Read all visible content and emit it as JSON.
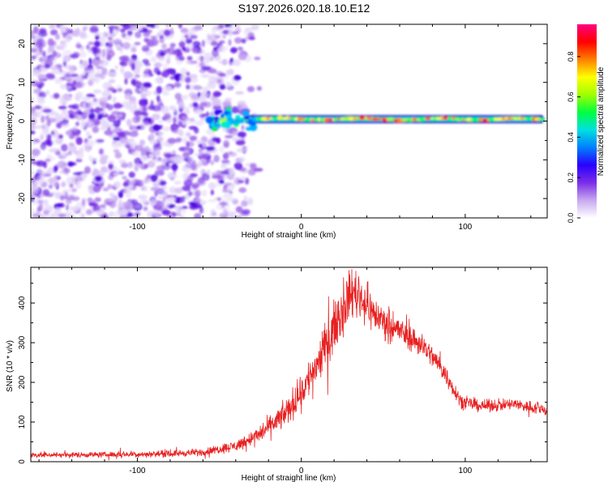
{
  "title": "S197.2026.020.18.10.E12",
  "chart_data": [
    {
      "type": "heatmap",
      "xlabel": "Height of straight line (km)",
      "ylabel": "Frequency (Hz)",
      "xlim": [
        -165,
        150
      ],
      "ylim": [
        -25,
        25
      ],
      "xticks": [
        -100,
        0,
        100
      ],
      "yticks": [
        -20,
        -10,
        0,
        10,
        20
      ],
      "x_tick_labels": [
        "-100",
        "0",
        "100"
      ],
      "y_tick_labels": [
        "-20",
        "-10",
        "0",
        "10",
        "20"
      ],
      "colorbar": {
        "label": "Normalized spectral amplitude",
        "range": [
          0.0,
          0.96
        ],
        "ticks": [
          "0.0",
          "0.2",
          "0.4",
          "0.6",
          "0.8"
        ],
        "colors": [
          "#ffffff",
          "#c8a8f0",
          "#7a2ee6",
          "#2a00ff",
          "#0080ff",
          "#00e0e0",
          "#00ff40",
          "#a0ff00",
          "#ffff00",
          "#ff8000",
          "#ff0000",
          "#ff0080"
        ]
      },
      "features": {
        "noise_region_x": [
          -165,
          -25
        ],
        "tone_region_x": [
          -55,
          148
        ],
        "tone_frequency_hz": 0.5
      }
    },
    {
      "type": "line",
      "xlabel": "Height of straight line (km)",
      "ylabel": "SNR (10 * v/v)",
      "xlim": [
        -165,
        150
      ],
      "ylim": [
        0,
        490
      ],
      "xticks": [
        -100,
        0,
        100
      ],
      "yticks": [
        0,
        100,
        200,
        300,
        400
      ],
      "x_tick_labels": [
        "-100",
        "0",
        "100"
      ],
      "y_tick_labels": [
        "0",
        "100",
        "200",
        "300",
        "400"
      ],
      "series": [
        {
          "name": "SNR",
          "color": "#e82020",
          "envelope_x": [
            -165,
            -120,
            -80,
            -60,
            -40,
            -25,
            -10,
            0,
            10,
            20,
            28,
            32,
            36,
            45,
            60,
            75,
            85,
            92,
            98,
            110,
            130,
            150
          ],
          "envelope_y": [
            17,
            18,
            20,
            24,
            40,
            70,
            120,
            175,
            250,
            340,
            410,
            430,
            415,
            370,
            330,
            290,
            240,
            190,
            150,
            140,
            145,
            130
          ],
          "noise_amplitude": [
            6,
            6,
            7,
            8,
            12,
            18,
            28,
            38,
            45,
            50,
            55,
            55,
            50,
            38,
            30,
            26,
            22,
            18,
            14,
            13,
            13,
            14
          ]
        }
      ]
    }
  ]
}
